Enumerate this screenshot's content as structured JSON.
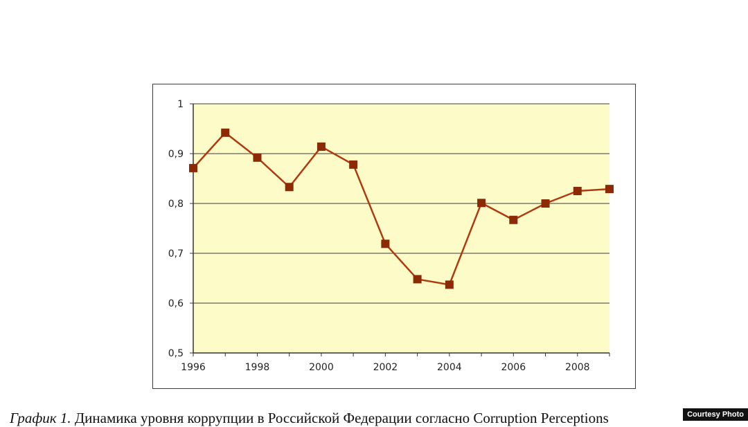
{
  "chart_data": {
    "type": "line",
    "x": [
      1996,
      1997,
      1998,
      1999,
      2000,
      2001,
      2002,
      2003,
      2004,
      2005,
      2006,
      2007,
      2008,
      2009
    ],
    "values": [
      0.871,
      0.942,
      0.892,
      0.833,
      0.914,
      0.878,
      0.719,
      0.648,
      0.637,
      0.801,
      0.767,
      0.8,
      0.825,
      0.829
    ],
    "ylim": [
      0.5,
      1.0
    ],
    "xlim": [
      1996,
      2009
    ],
    "yticks": [
      "0,5",
      "0,6",
      "0,7",
      "0,8",
      "0,9",
      "1"
    ],
    "xticks": [
      "1996",
      "1998",
      "2000",
      "2002",
      "2004",
      "2006",
      "2008"
    ],
    "grid": true,
    "colors": {
      "line": "#b03a10",
      "marker": "#8b2a05",
      "plot_bg": "#fdfbc8",
      "grid": "#3a3a3a"
    }
  },
  "caption": {
    "prefix": "График 1.",
    "text": " Динамика уровня коррупции в Российской Федерации согласно Corruption Perceptions"
  },
  "credit": "Courtesy Photo"
}
